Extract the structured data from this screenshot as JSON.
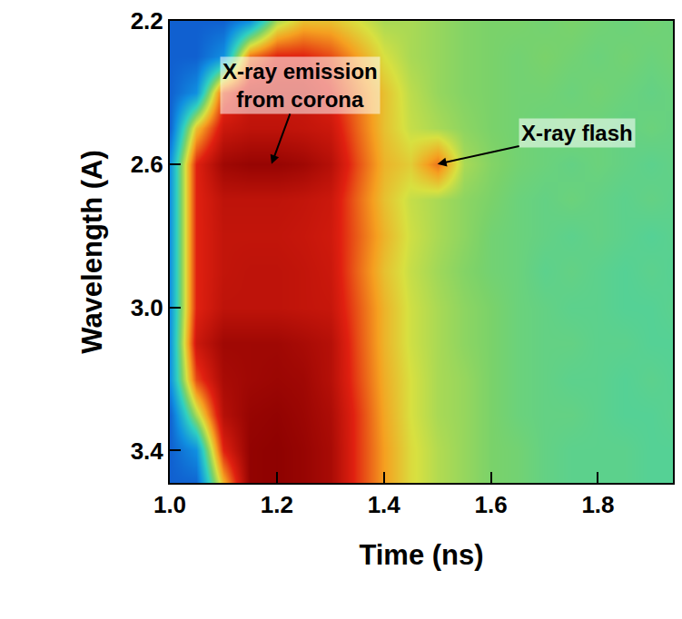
{
  "chart_data": {
    "type": "heatmap",
    "x_label": "Time (ns)",
    "y_label": "Wavelength (A)",
    "xlim": [
      1.0,
      1.94
    ],
    "ylim": [
      3.49,
      2.2
    ],
    "xticks": [
      {
        "value": 1,
        "label": "1.0"
      },
      1.2,
      1.4,
      1.6,
      1.8
    ],
    "yticks": [
      2.2,
      2.6,
      {
        "value": 3,
        "label": "3.0"
      },
      3.4
    ],
    "grid": false,
    "x": [
      1.0,
      1.05,
      1.1,
      1.15,
      1.2,
      1.25,
      1.3,
      1.35,
      1.4,
      1.45,
      1.5,
      1.55,
      1.6,
      1.65,
      1.7,
      1.75,
      1.8,
      1.85,
      1.9,
      1.95
    ],
    "y": [
      2.2,
      2.3,
      2.4,
      2.5,
      2.6,
      2.7,
      2.8,
      2.9,
      3.0,
      3.1,
      3.2,
      3.3,
      3.4,
      3.5
    ],
    "zlim": [
      0,
      10
    ],
    "z": [
      [
        1,
        1,
        1,
        2,
        5,
        6,
        6,
        5.5,
        5,
        5,
        4.8,
        4.6,
        4.5,
        4.5,
        4.4,
        4.5,
        4.4,
        4.3,
        4.4,
        4.3
      ],
      [
        1,
        1,
        2,
        7,
        8,
        8,
        7.5,
        6.5,
        5.5,
        5,
        4.8,
        4.6,
        4.5,
        4.4,
        4.5,
        4.4,
        4.3,
        4.4,
        4.3,
        4.4
      ],
      [
        1,
        2,
        7.5,
        8.5,
        8.5,
        8.5,
        8,
        7,
        6,
        5.2,
        4.8,
        4.6,
        4.5,
        4.4,
        4.4,
        4.3,
        4.4,
        4.3,
        4.2,
        4.3
      ],
      [
        1,
        6,
        8.5,
        8.8,
        8.8,
        8.7,
        8.5,
        7.2,
        6,
        5.3,
        5,
        4.7,
        4.5,
        4.4,
        4.3,
        4.4,
        4.3,
        4.2,
        4.3,
        4.2
      ],
      [
        2,
        8,
        9.5,
        9.7,
        9.7,
        9.5,
        9,
        7.5,
        6.2,
        5.8,
        7,
        5,
        4.6,
        4.4,
        4.3,
        4.2,
        4.3,
        4.2,
        4.1,
        4.2
      ],
      [
        2,
        8,
        8.8,
        8.8,
        8.8,
        8.7,
        8.5,
        7.2,
        6,
        5.3,
        5,
        4.7,
        4.5,
        4.3,
        4.2,
        4.3,
        4.2,
        4.1,
        4.2,
        4.1
      ],
      [
        2,
        8,
        8.7,
        8.7,
        8.7,
        8.6,
        8.4,
        7.3,
        6.2,
        5.4,
        5,
        4.7,
        4.4,
        4.3,
        4.2,
        4.1,
        4.2,
        4.1,
        4,
        4.1
      ],
      [
        2,
        8,
        8.7,
        8.8,
        8.8,
        8.7,
        8.5,
        7.2,
        6,
        5.3,
        4.9,
        4.6,
        4.4,
        4.3,
        4.1,
        4.2,
        4.1,
        4,
        4.1,
        4
      ],
      [
        2,
        8,
        8.8,
        8.8,
        8.8,
        8.7,
        8.6,
        7.4,
        6.2,
        5.4,
        5,
        4.7,
        4.5,
        4.3,
        4.2,
        4.1,
        4.1,
        4,
        4,
        4.1
      ],
      [
        2,
        8.5,
        9.5,
        9.5,
        9.5,
        9.3,
        9,
        7.5,
        6.2,
        5.4,
        5,
        4.7,
        4.5,
        4.3,
        4.2,
        4.2,
        4.1,
        4.1,
        4,
        4
      ],
      [
        2,
        7.5,
        9.3,
        9.5,
        9.6,
        9.5,
        9,
        7.6,
        6.3,
        5.5,
        5,
        4.8,
        4.5,
        4.3,
        4.2,
        4.1,
        4.1,
        4,
        4.1,
        4
      ],
      [
        1,
        5,
        9,
        9.7,
        9.8,
        9.6,
        9.2,
        7.8,
        6.4,
        5.5,
        5,
        4.8,
        4.5,
        4.3,
        4.2,
        4.2,
        4.1,
        4,
        4,
        4.1
      ],
      [
        1,
        2,
        8,
        9.8,
        9.9,
        9.7,
        9.3,
        7.8,
        6.5,
        5.6,
        5.1,
        4.8,
        4.5,
        4.4,
        4.2,
        4.1,
        4.1,
        4.1,
        4,
        4
      ],
      [
        1,
        1,
        6,
        9.8,
        9.9,
        9.7,
        9.3,
        7.8,
        6.5,
        5.6,
        5.1,
        4.8,
        4.5,
        4.4,
        4.2,
        4.1,
        4.1,
        4.1,
        4,
        4
      ]
    ],
    "annotations": [
      {
        "text": "X-ray emission\nfrom corona",
        "x": 1.19,
        "y": 2.6
      },
      {
        "text": "X-ray flash",
        "x": 1.5,
        "y": 2.6
      }
    ]
  }
}
